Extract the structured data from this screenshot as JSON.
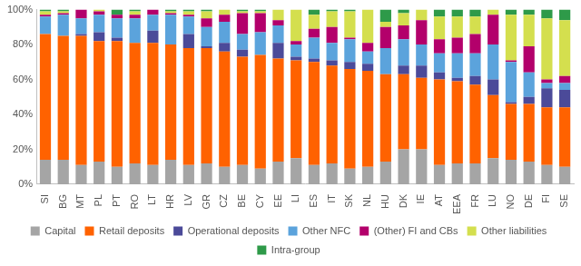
{
  "chart_data": {
    "type": "bar",
    "stacked": true,
    "grid": false,
    "legend": "bottom",
    "categories": [
      "SI",
      "BG",
      "MT",
      "PL",
      "PT",
      "RO",
      "LT",
      "HR",
      "LV",
      "GR",
      "CZ",
      "BE",
      "CY",
      "EE",
      "LI",
      "ES",
      "IT",
      "SK",
      "NL",
      "HU",
      "DK",
      "IE",
      "AT",
      "EEA",
      "FR",
      "LU",
      "NO",
      "DE",
      "FI",
      "SE"
    ],
    "ylim": [
      0,
      100
    ],
    "yticks": [
      {
        "value": 0,
        "label": "0%"
      },
      {
        "value": 20,
        "label": "20%"
      },
      {
        "value": 40,
        "label": "40%"
      },
      {
        "value": 60,
        "label": "60%"
      },
      {
        "value": 80,
        "label": "80%"
      },
      {
        "value": 100,
        "label": "100%"
      }
    ],
    "series": [
      {
        "name": "Capital",
        "color": "#a5a5a5",
        "values": [
          14,
          14,
          11,
          13,
          10,
          12,
          11,
          14,
          11,
          12,
          10,
          11,
          9,
          13,
          15,
          11,
          12,
          9,
          10,
          13,
          20,
          20,
          11,
          12,
          12,
          15,
          14,
          13,
          11,
          10
        ]
      },
      {
        "name": "Retail deposits",
        "color": "#ff6200",
        "values": [
          72,
          71,
          74,
          69,
          72,
          69,
          70,
          66,
          67,
          66,
          66,
          62,
          65,
          59,
          56,
          59,
          56,
          57,
          55,
          50,
          43,
          41,
          49,
          47,
          45,
          36,
          32,
          33,
          33,
          34
        ]
      },
      {
        "name": "Operational deposits",
        "color": "#4b4a99",
        "values": [
          0,
          0,
          1,
          5,
          2,
          0,
          7,
          0,
          8,
          1,
          5,
          4,
          0,
          9,
          2,
          2,
          3,
          4,
          4,
          0,
          5,
          7,
          4,
          2,
          5,
          9,
          1,
          4,
          11,
          10
        ]
      },
      {
        "name": "Other NFC",
        "color": "#5ba3dc",
        "values": [
          10,
          12,
          9,
          10,
          11,
          14,
          9,
          17,
          10,
          11,
          12,
          9,
          13,
          10,
          7,
          12,
          10,
          13,
          7,
          15,
          15,
          12,
          11,
          14,
          13,
          20,
          23,
          14,
          3,
          4
        ]
      },
      {
        "name": "(Other) FI and CBs",
        "color": "#b3006b",
        "values": [
          1,
          1,
          5,
          2,
          2,
          2,
          3,
          1,
          1,
          5,
          4,
          12,
          11,
          3,
          2,
          5,
          9,
          1,
          5,
          12,
          8,
          14,
          8,
          9,
          11,
          17,
          1,
          15,
          2,
          4
        ]
      },
      {
        "name": "Other liabilities",
        "color": "#d4df4e",
        "values": [
          2,
          1,
          0,
          1,
          0,
          2,
          0,
          1,
          2,
          4,
          3,
          1,
          1,
          6,
          18,
          8,
          9,
          15,
          19,
          3,
          7,
          6,
          13,
          12,
          10,
          3,
          26,
          18,
          35,
          32
        ]
      },
      {
        "name": "Intra-group",
        "color": "#2e9a49",
        "values": [
          1,
          1,
          0,
          0,
          3,
          1,
          0,
          1,
          1,
          1,
          0,
          1,
          1,
          0,
          0,
          3,
          1,
          1,
          0,
          7,
          2,
          0,
          4,
          4,
          4,
          0,
          3,
          3,
          5,
          6
        ]
      }
    ]
  }
}
